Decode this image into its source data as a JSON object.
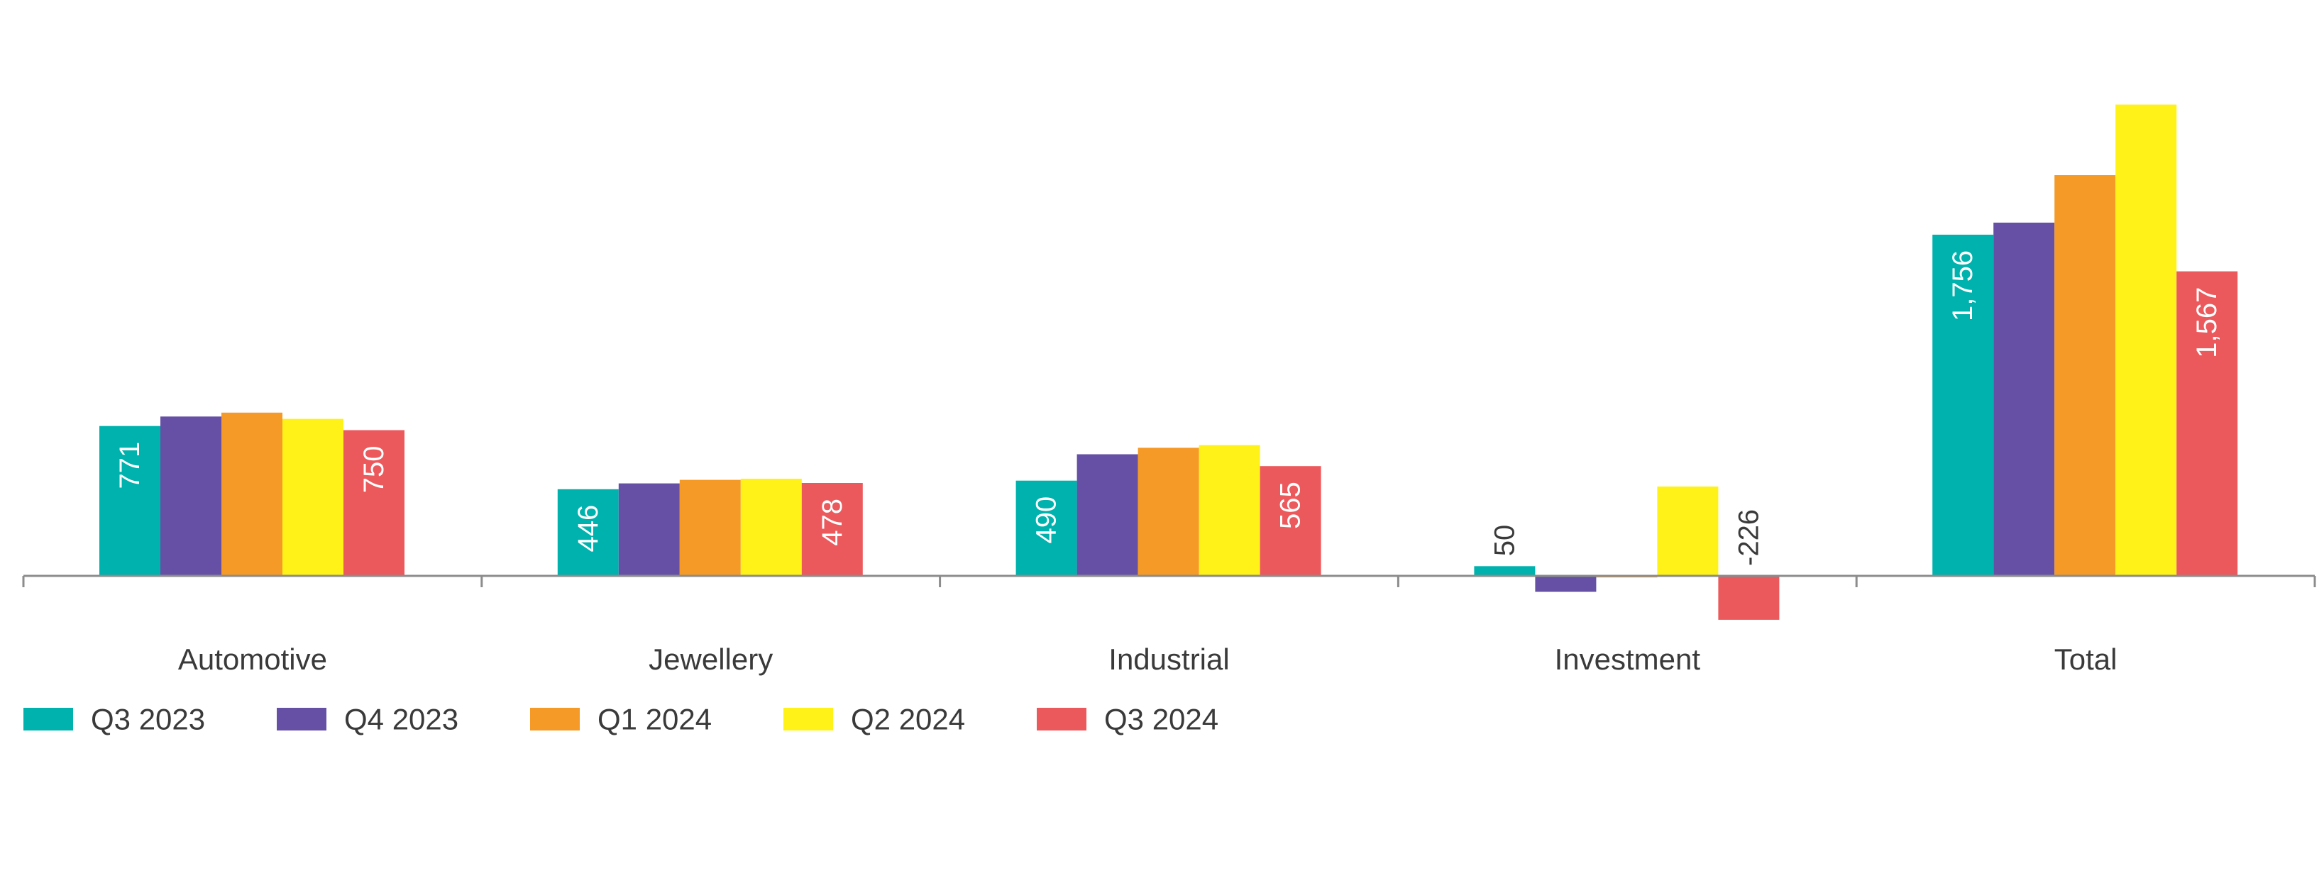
{
  "chart_data": {
    "type": "bar",
    "categories": [
      "Automotive",
      "Jewellery",
      "Industrial",
      "Investment",
      "Total"
    ],
    "series": [
      {
        "name": "Q3 2023",
        "color": "#00b2ad",
        "values": [
          771,
          446,
          490,
          50,
          1756
        ]
      },
      {
        "name": "Q4 2023",
        "color": "#6550a6",
        "values": [
          820,
          476,
          626,
          -82,
          1818
        ]
      },
      {
        "name": "Q1 2024",
        "color": "#f59a26",
        "values": [
          840,
          494,
          659,
          -8,
          2062
        ]
      },
      {
        "name": "Q2 2024",
        "color": "#fef218",
        "values": [
          808,
          500,
          673,
          460,
          2425
        ]
      },
      {
        "name": "Q3 2024",
        "color": "#ec595c",
        "values": [
          750,
          478,
          565,
          -226,
          1567
        ]
      }
    ],
    "data_labels": [
      {
        "category": 0,
        "series": 0,
        "text": "771",
        "placement": "inside"
      },
      {
        "category": 0,
        "series": 4,
        "text": "750",
        "placement": "inside"
      },
      {
        "category": 1,
        "series": 0,
        "text": "446",
        "placement": "inside"
      },
      {
        "category": 1,
        "series": 4,
        "text": "478",
        "placement": "inside"
      },
      {
        "category": 2,
        "series": 0,
        "text": "490",
        "placement": "inside"
      },
      {
        "category": 2,
        "series": 4,
        "text": "565",
        "placement": "inside"
      },
      {
        "category": 3,
        "series": 0,
        "text": "50",
        "placement": "outside"
      },
      {
        "category": 3,
        "series": 4,
        "text": "-226",
        "placement": "outside"
      },
      {
        "category": 4,
        "series": 0,
        "text": "1,756",
        "placement": "inside"
      },
      {
        "category": 4,
        "series": 4,
        "text": "1,567",
        "placement": "inside"
      }
    ],
    "ylim": [
      -250,
      2500
    ],
    "grid": false,
    "legend_position": "bottom-left",
    "axis_color": "#8c8c8c",
    "text_color": "#3a3a3a",
    "inside_label_color": "#ffffff"
  }
}
